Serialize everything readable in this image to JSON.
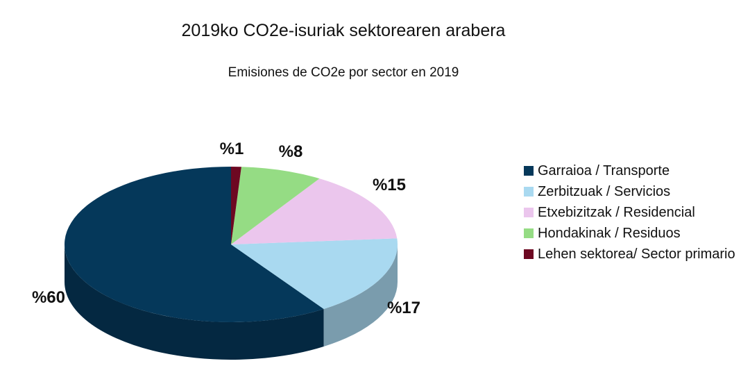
{
  "chart_data": {
    "type": "pie",
    "title": "2019ko CO2e-isuriak sektorearen arabera",
    "subtitle": "Emisiones de CO2e por sector en 2019",
    "slices": [
      {
        "label": "Garraioa / Transporte",
        "value": 60,
        "display": "%60",
        "color": "#05385a"
      },
      {
        "label": "Zerbitzuak / Servicios",
        "value": 17,
        "display": "%17",
        "color": "#a9d9f0"
      },
      {
        "label": "Etxebizitzak / Residencial",
        "value": 15,
        "display": "%15",
        "color": "#ebc6ed"
      },
      {
        "label": "Hondakinak / Residuos",
        "value": 8,
        "display": "%8",
        "color": "#95dc84"
      },
      {
        "label": "Lehen sektorea/ Sector primario",
        "value": 1,
        "display": "%1",
        "color": "#6d0822"
      }
    ],
    "legend_position": "right"
  }
}
